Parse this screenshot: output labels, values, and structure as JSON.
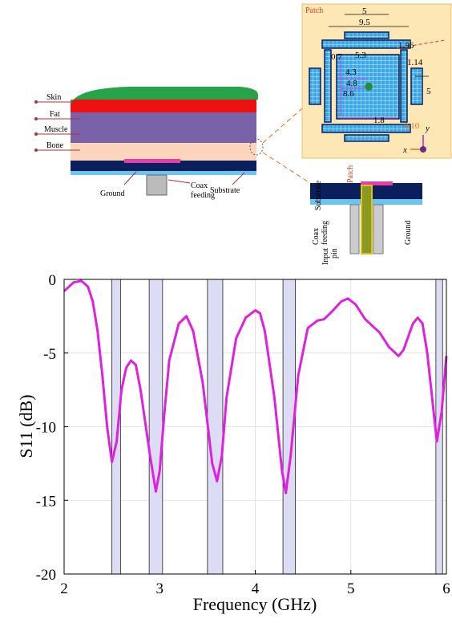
{
  "chart_data": {
    "type": "line",
    "x_label": "Frequency (GHz)",
    "y_label": "S11 (dB)",
    "xlim": [
      2,
      6
    ],
    "ylim": [
      -20,
      0
    ],
    "xticks": [
      2,
      3,
      4,
      5,
      6
    ],
    "yticks": [
      0,
      -5,
      -10,
      -15,
      -20
    ],
    "grid": true,
    "bands": [
      [
        2.5,
        2.59
      ],
      [
        2.89,
        3.03
      ],
      [
        3.5,
        3.66
      ],
      [
        4.29,
        4.42
      ],
      [
        5.89,
        5.96
      ]
    ],
    "band_color": "#dcdcf5",
    "x": [
      2.0,
      2.1,
      2.18,
      2.25,
      2.3,
      2.35,
      2.4,
      2.45,
      2.5,
      2.55,
      2.6,
      2.65,
      2.7,
      2.75,
      2.8,
      2.9,
      2.96,
      3.0,
      3.05,
      3.1,
      3.2,
      3.28,
      3.35,
      3.45,
      3.55,
      3.6,
      3.65,
      3.7,
      3.8,
      3.9,
      4.0,
      4.05,
      4.1,
      4.2,
      4.28,
      4.32,
      4.37,
      4.45,
      4.55,
      4.65,
      4.72,
      4.8,
      4.9,
      4.97,
      5.05,
      5.15,
      5.3,
      5.4,
      5.5,
      5.55,
      5.65,
      5.7,
      5.75,
      5.8,
      5.85,
      5.9,
      5.95,
      6.0
    ],
    "series": [
      {
        "color": "#e020e0",
        "values": [
          -0.8,
          -0.2,
          -0.1,
          -0.5,
          -1.5,
          -3.5,
          -6.5,
          -10,
          -12.4,
          -11,
          -7.5,
          -6,
          -5.5,
          -5.8,
          -7.5,
          -12,
          -14.4,
          -13,
          -9,
          -5.5,
          -3,
          -2.5,
          -3.5,
          -7,
          -12.5,
          -13.7,
          -12,
          -8,
          -4,
          -2.6,
          -2.1,
          -2.3,
          -3.5,
          -8,
          -13,
          -14.5,
          -12,
          -6.5,
          -3.3,
          -2.8,
          -2.7,
          -2.2,
          -1.5,
          -1.3,
          -1.7,
          -2.7,
          -3.6,
          -4.6,
          -5.2,
          -4.8,
          -3,
          -2.6,
          -3,
          -5,
          -8,
          -11,
          -9,
          -5.2
        ]
      }
    ]
  },
  "diagram": {
    "layers": [
      "Skin",
      "Fat",
      "Muscle",
      "Bone"
    ],
    "ground": "Ground",
    "coax_feeding": [
      "Coax",
      "feeding"
    ],
    "substrate": "Substrate",
    "patch": "Patch",
    "dimensions": [
      "5",
      "9.5",
      "1.96",
      "0.7",
      "5.3",
      "1.14",
      "4.3",
      "4.8",
      "8.6",
      "5",
      "1.8",
      "0.10"
    ],
    "axes": [
      "y",
      "x"
    ],
    "section": {
      "substrate": "Substrate",
      "patch": "Patch",
      "coax_feeding": [
        "Coax",
        "feeding"
      ],
      "input_pin": [
        "Input",
        "pin"
      ],
      "ground": "Ground"
    }
  }
}
